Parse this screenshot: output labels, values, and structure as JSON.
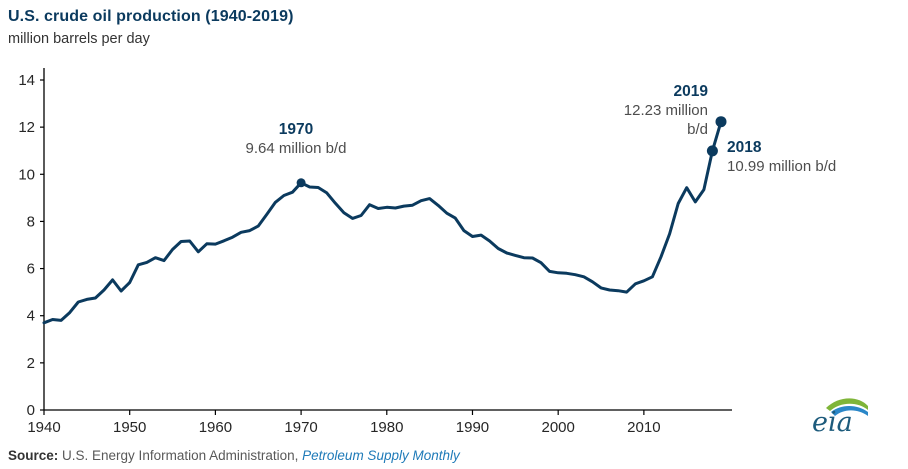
{
  "chart_data": {
    "type": "line",
    "title": "U.S. crude oil production (1940-2019)",
    "ylabel": "million barrels per day",
    "xlabel": "",
    "grid": false,
    "legend": "none",
    "line_color": "#0b3a5e",
    "ylim": [
      0,
      14
    ],
    "xlim": [
      1940,
      2019
    ],
    "yticks": [
      0,
      2,
      4,
      6,
      8,
      10,
      12,
      14
    ],
    "xticks": [
      1940,
      1950,
      1960,
      1970,
      1980,
      1990,
      2000,
      2010
    ],
    "years": [
      1940,
      1941,
      1942,
      1943,
      1944,
      1945,
      1946,
      1947,
      1948,
      1949,
      1950,
      1951,
      1952,
      1953,
      1954,
      1955,
      1956,
      1957,
      1958,
      1959,
      1960,
      1961,
      1962,
      1963,
      1964,
      1965,
      1966,
      1967,
      1968,
      1969,
      1970,
      1971,
      1972,
      1973,
      1974,
      1975,
      1976,
      1977,
      1978,
      1979,
      1980,
      1981,
      1982,
      1983,
      1984,
      1985,
      1986,
      1987,
      1988,
      1989,
      1990,
      1991,
      1992,
      1993,
      1994,
      1995,
      1996,
      1997,
      1998,
      1999,
      2000,
      2001,
      2002,
      2003,
      2004,
      2005,
      2006,
      2007,
      2008,
      2009,
      2010,
      2011,
      2012,
      2013,
      2014,
      2015,
      2016,
      2017,
      2018,
      2019
    ],
    "values": [
      3.7,
      3.84,
      3.8,
      4.13,
      4.58,
      4.69,
      4.75,
      5.09,
      5.52,
      5.05,
      5.41,
      6.16,
      6.26,
      6.46,
      6.34,
      6.81,
      7.15,
      7.17,
      6.71,
      7.05,
      7.04,
      7.18,
      7.33,
      7.54,
      7.61,
      7.8,
      8.3,
      8.81,
      9.1,
      9.24,
      9.64,
      9.46,
      9.44,
      9.21,
      8.77,
      8.37,
      8.13,
      8.25,
      8.71,
      8.55,
      8.6,
      8.57,
      8.65,
      8.69,
      8.88,
      8.97,
      8.68,
      8.35,
      8.14,
      7.61,
      7.36,
      7.42,
      7.17,
      6.85,
      6.66,
      6.56,
      6.46,
      6.45,
      6.25,
      5.88,
      5.82,
      5.8,
      5.74,
      5.65,
      5.44,
      5.18,
      5.09,
      5.06,
      5.0,
      5.35,
      5.48,
      5.65,
      6.5,
      7.47,
      8.76,
      9.43,
      8.83,
      9.35,
      10.99,
      12.23
    ],
    "annotations": [
      {
        "year": 1970,
        "value": 9.64,
        "year_label": "1970",
        "value_label": "9.64 million b/d"
      },
      {
        "year": 2019,
        "value": 12.23,
        "year_label": "2019",
        "value_label": "12.23 million",
        "value_label_2": "b/d"
      },
      {
        "year": 2018,
        "value": 10.99,
        "year_label": "2018",
        "value_label": "10.99 million b/d"
      }
    ]
  },
  "footer": {
    "source_prefix": "Source:",
    "source_text": "U.S. Energy Information Administration,",
    "source_link": "Petroleum Supply Monthly"
  },
  "logo": {
    "text": "eia"
  },
  "colors": {
    "line": "#0b3a5e",
    "title": "#0b3a5e",
    "annotation_year": "#0b3a5e",
    "annotation_value": "#4d4d4d",
    "source_link": "#1e7ab8",
    "logo_green": "#7fb539",
    "logo_blue": "#2b87c8"
  }
}
